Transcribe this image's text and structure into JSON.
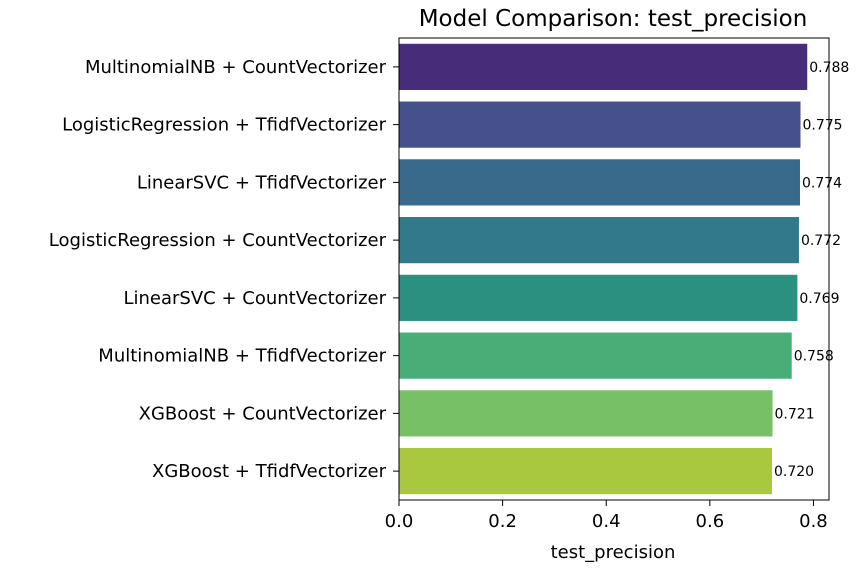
{
  "chart_data": {
    "type": "bar",
    "orientation": "horizontal",
    "title": "Model Comparison: test_precision",
    "xlabel": "test_precision",
    "ylabel": "",
    "categories": [
      "MultinomialNB + CountVectorizer",
      "LogisticRegression + TfidfVectorizer",
      "LinearSVC + TfidfVectorizer",
      "LogisticRegression + CountVectorizer",
      "LinearSVC + CountVectorizer",
      "MultinomialNB + TfidfVectorizer",
      "XGBoost + CountVectorizer",
      "XGBoost + TfidfVectorizer"
    ],
    "values": [
      0.788,
      0.775,
      0.774,
      0.772,
      0.769,
      0.758,
      0.721,
      0.72
    ],
    "data_labels": [
      "0.788",
      "0.775",
      "0.774",
      "0.772",
      "0.769",
      "0.758",
      "0.721",
      "0.720"
    ],
    "xlim": [
      0,
      0.83
    ],
    "xticks": [
      0.0,
      0.2,
      0.4,
      0.6,
      0.8
    ],
    "xtick_labels": [
      "0.0",
      "0.2",
      "0.4",
      "0.6",
      "0.8"
    ],
    "grid": false,
    "colors": [
      "#472c7a",
      "#46508a",
      "#3a6a8b",
      "#31798b",
      "#2a9180",
      "#48ad76",
      "#77c065",
      "#a8c83f"
    ]
  }
}
